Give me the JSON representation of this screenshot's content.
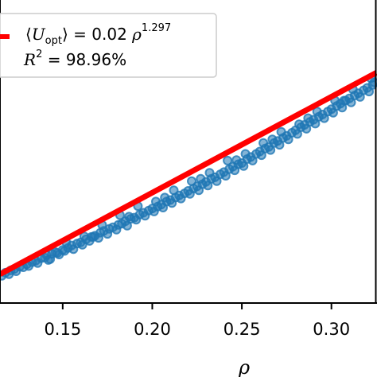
{
  "chart_data": {
    "type": "scatter",
    "xlabel": "ρ",
    "ylabel": "",
    "title": "",
    "xlim": [
      0.115,
      0.325
    ],
    "ylim": [
      0.0,
      1.0
    ],
    "xticks": [
      0.15,
      0.2,
      0.25,
      0.3
    ],
    "xtick_labels": [
      "0.15",
      "0.20",
      "0.25",
      "0.30"
    ],
    "grid": false,
    "legend_position": "top-left",
    "legend": {
      "fit_prefix": "⟨",
      "fit_U": "U",
      "fit_sub": "opt",
      "fit_eq": "⟩ = 0.02 ",
      "fit_rho": "ρ",
      "fit_exp": "1.297",
      "r2_R": "R",
      "r2_sup": "2",
      "r2_eq": " = 98.96%"
    },
    "fit": {
      "name": "⟨U_opt⟩ = 0.02 ρ^1.297",
      "coef": 0.02,
      "exponent": 1.297,
      "color": "#ff0000"
    },
    "series": [
      {
        "name": "data",
        "color": "#1f77b4",
        "x": [
          0.116,
          0.118,
          0.12,
          0.121,
          0.123,
          0.124,
          0.126,
          0.128,
          0.13,
          0.131,
          0.133,
          0.135,
          0.136,
          0.138,
          0.14,
          0.141,
          0.143,
          0.144,
          0.146,
          0.148,
          0.15,
          0.151,
          0.153,
          0.155,
          0.156,
          0.158,
          0.16,
          0.161,
          0.163,
          0.165,
          0.166,
          0.168,
          0.17,
          0.171,
          0.173,
          0.175,
          0.176,
          0.178,
          0.18,
          0.181,
          0.183,
          0.185,
          0.186,
          0.188,
          0.19,
          0.191,
          0.193,
          0.195,
          0.196,
          0.198,
          0.2,
          0.201,
          0.203,
          0.205,
          0.206,
          0.208,
          0.21,
          0.211,
          0.213,
          0.215,
          0.216,
          0.218,
          0.22,
          0.221,
          0.223,
          0.225,
          0.226,
          0.228,
          0.23,
          0.231,
          0.233,
          0.235,
          0.236,
          0.238,
          0.24,
          0.241,
          0.243,
          0.245,
          0.246,
          0.248,
          0.25,
          0.251,
          0.253,
          0.255,
          0.256,
          0.258,
          0.26,
          0.261,
          0.263,
          0.265,
          0.266,
          0.268,
          0.27,
          0.271,
          0.273,
          0.275,
          0.276,
          0.278,
          0.28,
          0.281,
          0.283,
          0.285,
          0.286,
          0.288,
          0.29,
          0.291,
          0.293,
          0.295,
          0.296,
          0.298,
          0.3,
          0.301,
          0.303,
          0.305,
          0.306,
          0.308,
          0.31,
          0.311,
          0.313,
          0.315,
          0.316,
          0.318,
          0.32,
          0.321,
          0.323,
          0.324,
          0.142,
          0.152,
          0.162,
          0.172,
          0.182,
          0.192,
          0.202,
          0.212,
          0.222,
          0.232,
          0.242,
          0.252,
          0.262,
          0.272,
          0.282,
          0.292,
          0.302,
          0.312,
          0.322,
          0.147,
          0.167,
          0.187,
          0.207,
          0.227,
          0.247,
          0.267,
          0.287,
          0.307
        ],
        "y": [
          0.09,
          0.1,
          0.095,
          0.108,
          0.112,
          0.105,
          0.12,
          0.118,
          0.128,
          0.122,
          0.135,
          0.14,
          0.132,
          0.148,
          0.15,
          0.158,
          0.145,
          0.162,
          0.168,
          0.16,
          0.175,
          0.172,
          0.182,
          0.19,
          0.178,
          0.196,
          0.2,
          0.192,
          0.21,
          0.205,
          0.218,
          0.222,
          0.215,
          0.232,
          0.238,
          0.228,
          0.245,
          0.25,
          0.242,
          0.258,
          0.262,
          0.27,
          0.255,
          0.278,
          0.282,
          0.275,
          0.292,
          0.298,
          0.288,
          0.305,
          0.312,
          0.302,
          0.318,
          0.325,
          0.315,
          0.335,
          0.34,
          0.33,
          0.348,
          0.355,
          0.345,
          0.362,
          0.37,
          0.36,
          0.378,
          0.385,
          0.372,
          0.392,
          0.4,
          0.388,
          0.41,
          0.415,
          0.402,
          0.425,
          0.432,
          0.42,
          0.442,
          0.45,
          0.438,
          0.458,
          0.462,
          0.452,
          0.475,
          0.482,
          0.47,
          0.492,
          0.5,
          0.488,
          0.51,
          0.515,
          0.505,
          0.528,
          0.535,
          0.522,
          0.545,
          0.552,
          0.54,
          0.562,
          0.57,
          0.558,
          0.58,
          0.588,
          0.575,
          0.598,
          0.605,
          0.592,
          0.615,
          0.622,
          0.61,
          0.632,
          0.64,
          0.628,
          0.65,
          0.658,
          0.645,
          0.668,
          0.675,
          0.662,
          0.685,
          0.692,
          0.68,
          0.702,
          0.71,
          0.698,
          0.72,
          0.728,
          0.142,
          0.2,
          0.22,
          0.258,
          0.29,
          0.32,
          0.335,
          0.372,
          0.402,
          0.43,
          0.47,
          0.492,
          0.528,
          0.565,
          0.59,
          0.632,
          0.668,
          0.705,
          0.742,
          0.165,
          0.218,
          0.285,
          0.348,
          0.41,
          0.472,
          0.54,
          0.61,
          0.668
        ]
      }
    ]
  }
}
